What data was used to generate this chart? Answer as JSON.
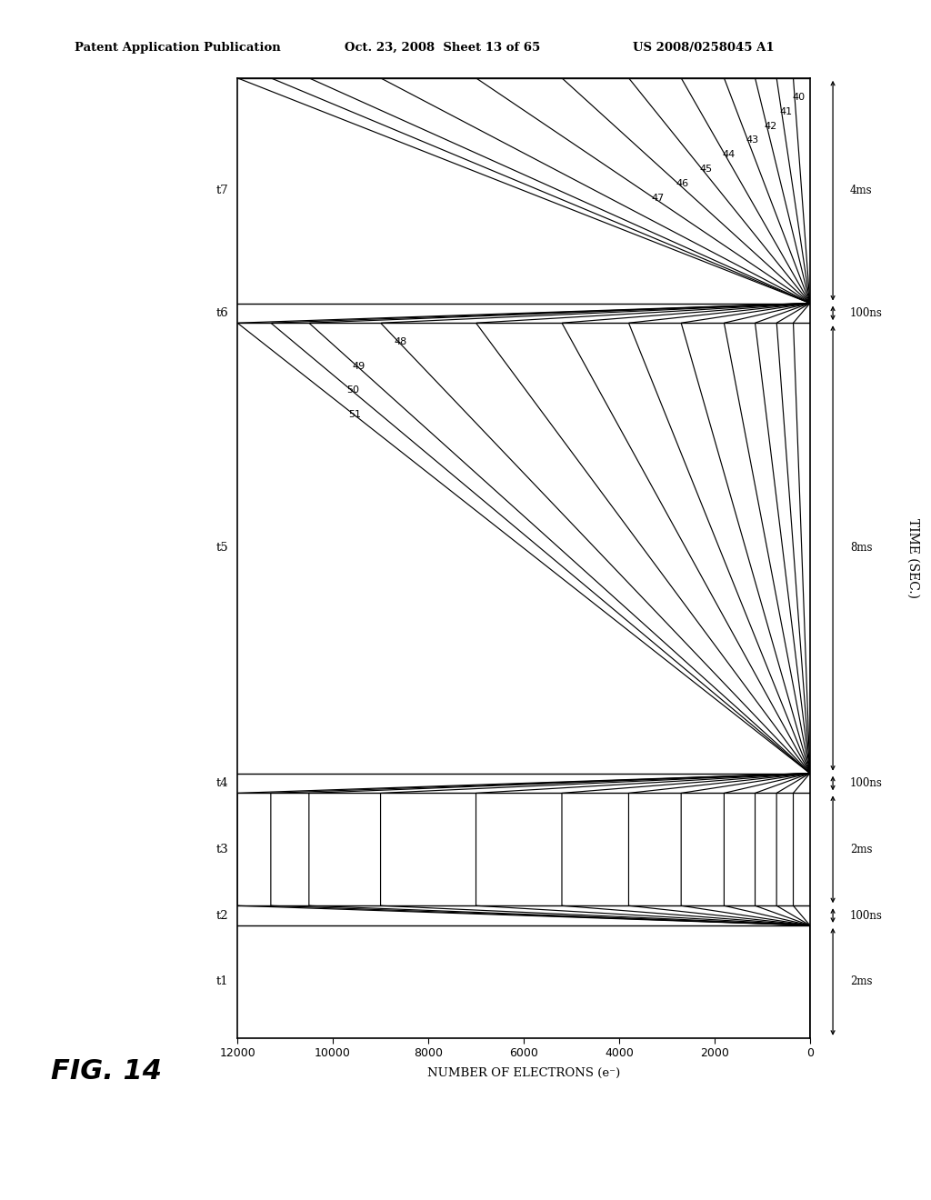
{
  "header_left": "Patent Application Publication",
  "header_center": "Oct. 23, 2008  Sheet 13 of 65",
  "header_right": "US 2008/0258045 A1",
  "fig_label": "FIG. 14",
  "electrons_label": "NUMBER OF ELECTRONS (e⁻)",
  "time_label": "TIME (SEC.)",
  "x_max": 12000,
  "x_ticks": [
    0,
    2000,
    4000,
    6000,
    8000,
    10000,
    12000
  ],
  "curve_labels": [
    "40",
    "41",
    "42",
    "43",
    "44",
    "45",
    "46",
    "47",
    "48",
    "49",
    "50",
    "51"
  ],
  "peak_values": [
    350,
    700,
    1150,
    1800,
    2700,
    3800,
    5200,
    7000,
    9000,
    10500,
    11300,
    12000
  ],
  "seg_widths": [
    2.0,
    0.35,
    2.0,
    0.35,
    8.0,
    0.35,
    4.0
  ],
  "seg_duration_labels": [
    "2ms",
    "100ns",
    "2ms",
    "100ns",
    "8ms",
    "100ns",
    "4ms"
  ],
  "time_point_labels": [
    "t1",
    "t2",
    "t3",
    "t4",
    "t5",
    "t6",
    "t7"
  ],
  "bg_color": "#ffffff",
  "line_color": "#000000"
}
